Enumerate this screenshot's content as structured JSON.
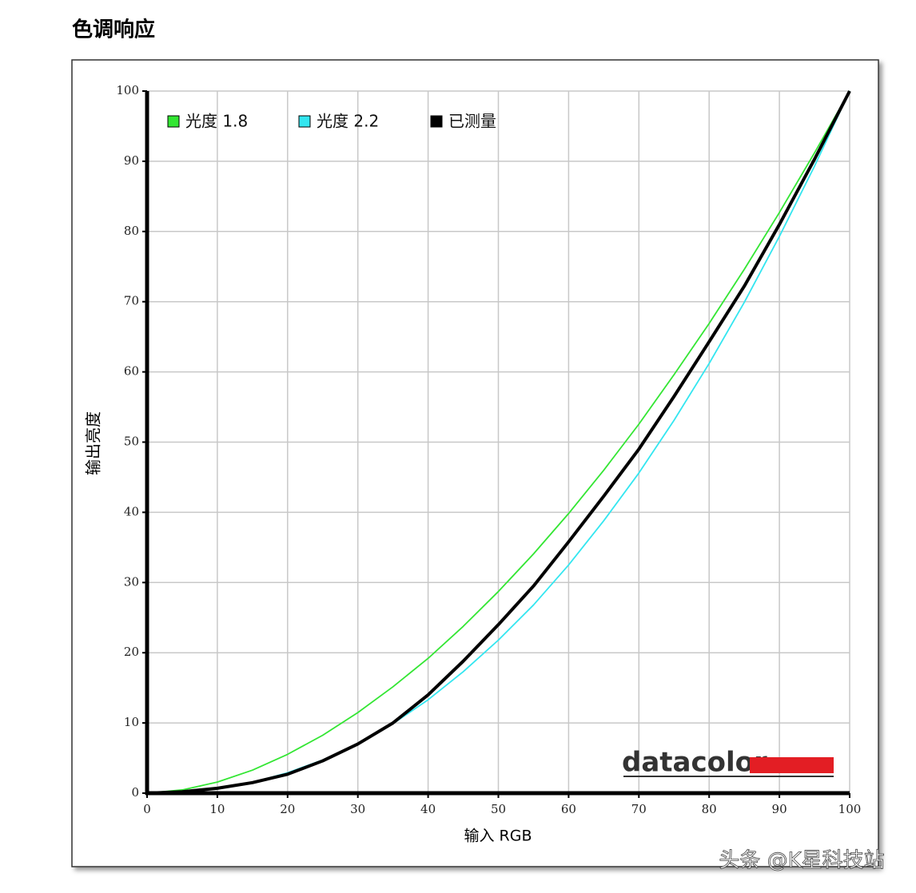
{
  "chart_data": {
    "type": "line",
    "title": "色调响应",
    "xlabel": "输入 RGB",
    "ylabel": "输出亮度",
    "x": [
      0,
      5,
      10,
      15,
      20,
      25,
      30,
      35,
      40,
      45,
      50,
      55,
      60,
      65,
      70,
      75,
      80,
      85,
      90,
      95,
      100
    ],
    "series": [
      {
        "name": "光度 1.8",
        "color": "#33e633",
        "values": [
          0,
          0.46,
          1.58,
          3.28,
          5.53,
          8.25,
          11.48,
          15.15,
          19.2,
          23.76,
          28.72,
          34.07,
          39.83,
          46.0,
          52.56,
          59.6,
          66.9,
          74.6,
          82.7,
          91.2,
          100
        ]
      },
      {
        "name": "光度 2.2",
        "color": "#33e6f0",
        "values": [
          0,
          0.14,
          0.63,
          1.54,
          2.9,
          4.73,
          7.06,
          9.9,
          13.3,
          17.3,
          21.8,
          26.8,
          32.5,
          38.8,
          45.6,
          53.1,
          61.2,
          69.9,
          79.3,
          89.3,
          100
        ]
      },
      {
        "name": "已测量",
        "color": "#000000",
        "values": [
          0,
          0.2,
          0.7,
          1.5,
          2.7,
          4.6,
          7,
          10,
          14,
          18.8,
          24,
          29.5,
          35.8,
          42.3,
          49,
          56.5,
          64.3,
          72.2,
          81,
          90.3,
          100
        ]
      }
    ],
    "xlim": [
      0,
      100
    ],
    "ylim": [
      0,
      100
    ],
    "xticks": [
      0,
      10,
      20,
      30,
      40,
      50,
      60,
      70,
      80,
      90,
      100
    ],
    "yticks": [
      0,
      10,
      20,
      30,
      40,
      50,
      60,
      70,
      80,
      90,
      100
    ],
    "grid": true,
    "legend": "top-left"
  },
  "logo": "datacolor",
  "watermark": "头条 @K星科技站"
}
